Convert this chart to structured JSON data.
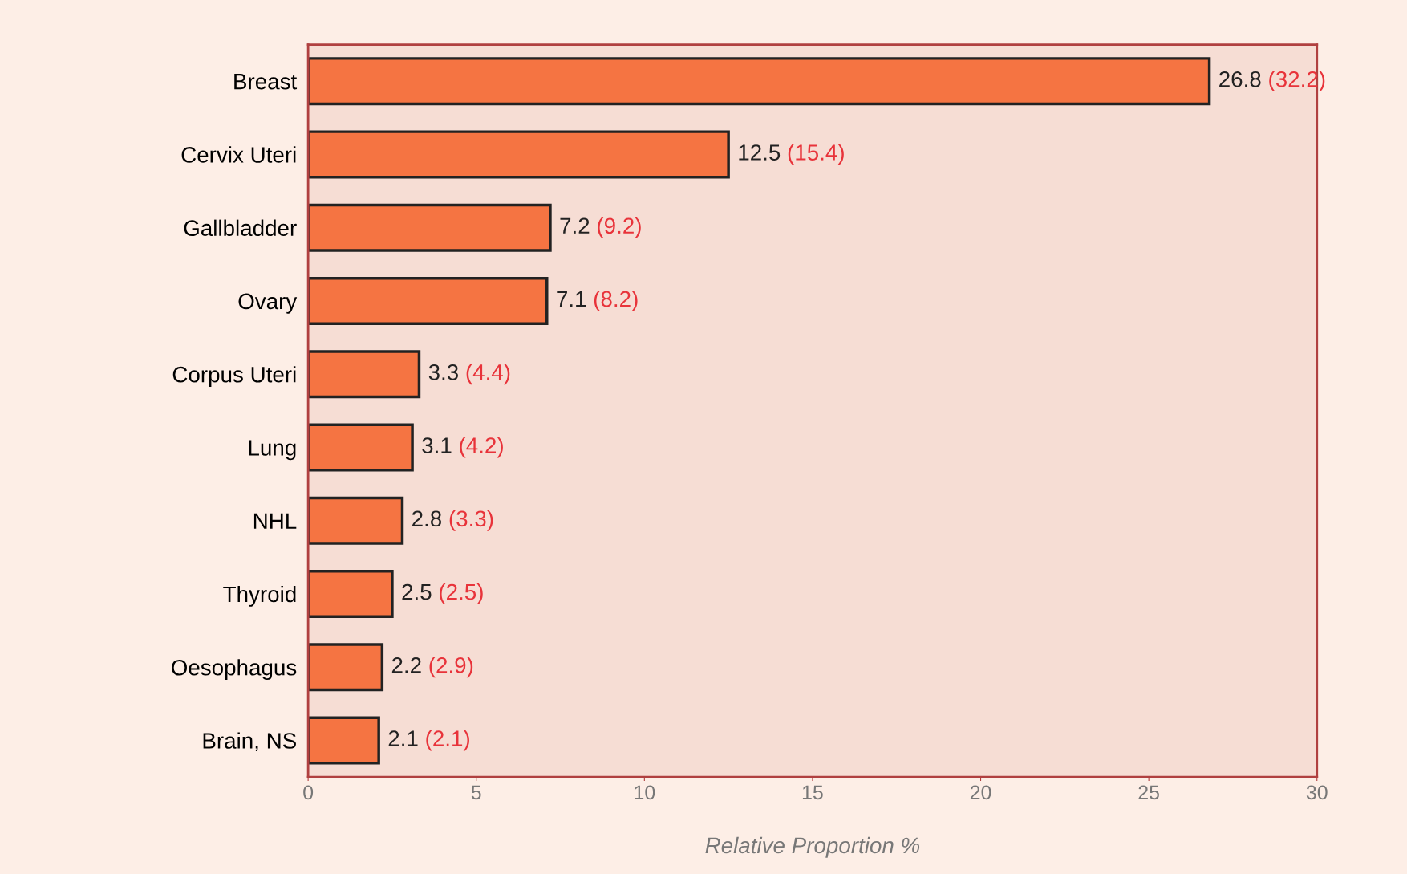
{
  "chart_data": {
    "type": "bar",
    "orientation": "horizontal",
    "xlabel": "Relative Proportion %",
    "categories": [
      "Breast",
      "Cervix Uteri",
      "Gallbladder",
      "Ovary",
      "Corpus Uteri",
      "Lung",
      "NHL",
      "Thyroid",
      "Oesophagus",
      "Brain, NS"
    ],
    "values": [
      26.8,
      12.5,
      7.2,
      7.1,
      3.3,
      3.1,
      2.8,
      2.5,
      2.2,
      2.1
    ],
    "value_labels": [
      "26.8 (32.2)",
      "12.5 (15.4)",
      "7.2 (9.2)",
      "7.1 (8.2)",
      "3.3 (4.4)",
      "3.1 (4.2)",
      "2.8 (3.3)",
      "2.5 (2.5)",
      "2.2 (2.9)",
      "2.1 (2.1)"
    ],
    "color": "#f57442",
    "xlim": [
      0,
      30
    ],
    "xticks": [
      0,
      5,
      10,
      15,
      20,
      25,
      30
    ],
    "grid": false,
    "legend": false
  }
}
